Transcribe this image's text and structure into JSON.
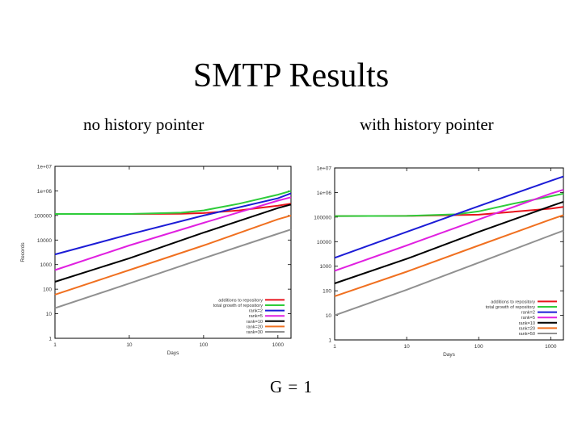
{
  "slide": {
    "title": "SMTP Results",
    "subtitle_left": "no history pointer",
    "subtitle_right": "with history pointer",
    "footer": "G = 1"
  },
  "chart_data": [
    {
      "type": "line",
      "title": "",
      "xlabel": "Days",
      "ylabel": "Records",
      "xscale": "log",
      "yscale": "log",
      "xlim": [
        1,
        1500
      ],
      "ylim": [
        1,
        10000000
      ],
      "xticks": [
        "1",
        "10",
        "100",
        "1000"
      ],
      "yticks": [
        "1",
        "10",
        "100",
        "1000",
        "10000",
        "100000",
        "1e+06",
        "1e+07"
      ],
      "legend_position": "bottom-right",
      "series": [
        {
          "name": "additions to repository",
          "color": "#e8141c",
          "points": [
            [
              1,
              115000
            ],
            [
              10,
              115000
            ],
            [
              50,
              118000
            ],
            [
              100,
              125000
            ],
            [
              300,
              160000
            ],
            [
              1000,
              250000
            ],
            [
              1500,
              300000
            ]
          ]
        },
        {
          "name": "total growth of repository",
          "color": "#2ecc3a",
          "points": [
            [
              1,
              115000
            ],
            [
              10,
              115000
            ],
            [
              50,
              130000
            ],
            [
              100,
              160000
            ],
            [
              300,
              300000
            ],
            [
              1000,
              700000
            ],
            [
              1500,
              1000000
            ]
          ]
        },
        {
          "name": "rank=2",
          "color": "#1c1cd6",
          "points": [
            [
              1,
              2600
            ],
            [
              10,
              17000
            ],
            [
              100,
              100000
            ],
            [
              1000,
              500000
            ],
            [
              1500,
              800000
            ]
          ]
        },
        {
          "name": "rank=5",
          "color": "#e020e0",
          "points": [
            [
              1,
              600
            ],
            [
              10,
              6000
            ],
            [
              100,
              50000
            ],
            [
              1000,
              400000
            ],
            [
              1500,
              550000
            ]
          ]
        },
        {
          "name": "rank=10",
          "color": "#000000",
          "points": [
            [
              1,
              200
            ],
            [
              10,
              1800
            ],
            [
              100,
              20000
            ],
            [
              1000,
              200000
            ],
            [
              1500,
              280000
            ]
          ]
        },
        {
          "name": "rank=20",
          "color": "#f07020",
          "points": [
            [
              1,
              60
            ],
            [
              10,
              600
            ],
            [
              100,
              6000
            ],
            [
              1000,
              70000
            ],
            [
              1500,
              100000
            ]
          ]
        },
        {
          "name": "rank=30",
          "color": "#909090",
          "points": [
            [
              1,
              17
            ],
            [
              10,
              170
            ],
            [
              100,
              1800
            ],
            [
              1000,
              18000
            ],
            [
              1500,
              27000
            ]
          ]
        }
      ]
    },
    {
      "type": "line",
      "title": "",
      "xlabel": "Days",
      "ylabel": "",
      "xscale": "log",
      "yscale": "log",
      "xlim": [
        1,
        1500
      ],
      "ylim": [
        1,
        10000000
      ],
      "xticks": [
        "1",
        "10",
        "100",
        "1000"
      ],
      "yticks": [
        "1",
        "10",
        "100",
        "1000",
        "10000",
        "100000",
        "1e+06",
        "1e+07"
      ],
      "legend_position": "bottom-right",
      "series": [
        {
          "name": "additions to repository",
          "color": "#e8141c",
          "points": [
            [
              1,
              110000
            ],
            [
              10,
              112000
            ],
            [
              100,
              125000
            ],
            [
              1000,
              220000
            ],
            [
              1500,
              260000
            ]
          ]
        },
        {
          "name": "total growth of repository",
          "color": "#2ecc3a",
          "points": [
            [
              1,
              110000
            ],
            [
              10,
              112000
            ],
            [
              50,
              130000
            ],
            [
              100,
              170000
            ],
            [
              300,
              350000
            ],
            [
              1000,
              700000
            ],
            [
              1500,
              900000
            ]
          ]
        },
        {
          "name": "rank=2",
          "color": "#1c1cd6",
          "points": [
            [
              1,
              2200
            ],
            [
              10,
              25000
            ],
            [
              100,
              280000
            ],
            [
              1000,
              3000000
            ],
            [
              1500,
              4500000
            ]
          ]
        },
        {
          "name": "rank=5",
          "color": "#e020e0",
          "points": [
            [
              1,
              650
            ],
            [
              10,
              7000
            ],
            [
              100,
              80000
            ],
            [
              1000,
              900000
            ],
            [
              1500,
              1300000
            ]
          ]
        },
        {
          "name": "rank=10",
          "color": "#000000",
          "points": [
            [
              1,
              200
            ],
            [
              10,
              2000
            ],
            [
              100,
              25000
            ],
            [
              1000,
              280000
            ],
            [
              1500,
              420000
            ]
          ]
        },
        {
          "name": "rank=20",
          "color": "#f07020",
          "points": [
            [
              1,
              60
            ],
            [
              10,
              600
            ],
            [
              100,
              7000
            ],
            [
              1000,
              80000
            ],
            [
              1500,
              120000
            ]
          ]
        },
        {
          "name": "rank=50",
          "color": "#909090",
          "points": [
            [
              1,
              10
            ],
            [
              10,
              110
            ],
            [
              100,
              1400
            ],
            [
              1000,
              18000
            ],
            [
              1500,
              28000
            ]
          ]
        }
      ]
    }
  ]
}
